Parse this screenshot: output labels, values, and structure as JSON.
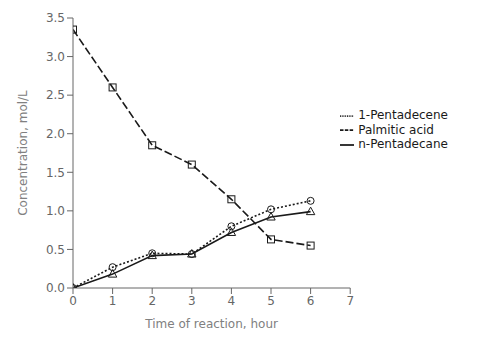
{
  "chart_data": {
    "type": "line",
    "xlabel": "Time of reaction, hour",
    "ylabel": "Concentration, mol/L",
    "x": [
      0,
      1,
      2,
      3,
      4,
      5,
      6
    ],
    "series": [
      {
        "name": "1-Pentadecene",
        "color": "#1a1a1a",
        "marker": "circle",
        "line_style": "dotted",
        "values": [
          0.0,
          0.27,
          0.45,
          0.44,
          0.8,
          1.02,
          1.13
        ]
      },
      {
        "name": "n-Pentadecane",
        "color": "#1a1a1a",
        "marker": "triangle",
        "line_style": "solid",
        "values": [
          0.0,
          0.18,
          0.42,
          0.44,
          0.72,
          0.92,
          0.99
        ]
      },
      {
        "name": "Palmitic acid",
        "color": "#1a1a1a",
        "marker": "square",
        "line_style": "dashed",
        "values": [
          3.35,
          2.6,
          1.85,
          1.6,
          1.15,
          0.63,
          0.55
        ]
      }
    ],
    "xlim": [
      0,
      7
    ],
    "ylim": [
      0,
      3.5
    ],
    "xticks": [
      0,
      1,
      2,
      3,
      4,
      5,
      6,
      7
    ],
    "yticks": [
      {
        "value": 0,
        "label": "0.0"
      },
      {
        "value": 0.5,
        "label": "0.5"
      },
      {
        "value": 1.0,
        "label": "1.0"
      },
      {
        "value": 1.5,
        "label": "1.5"
      },
      {
        "value": 2.0,
        "label": "2.0"
      },
      {
        "value": 2.5,
        "label": "2.5"
      },
      {
        "value": 3.0,
        "label": "3.0"
      },
      {
        "value": 3.5,
        "label": "3.5"
      }
    ],
    "grid": false,
    "legend": "right"
  }
}
